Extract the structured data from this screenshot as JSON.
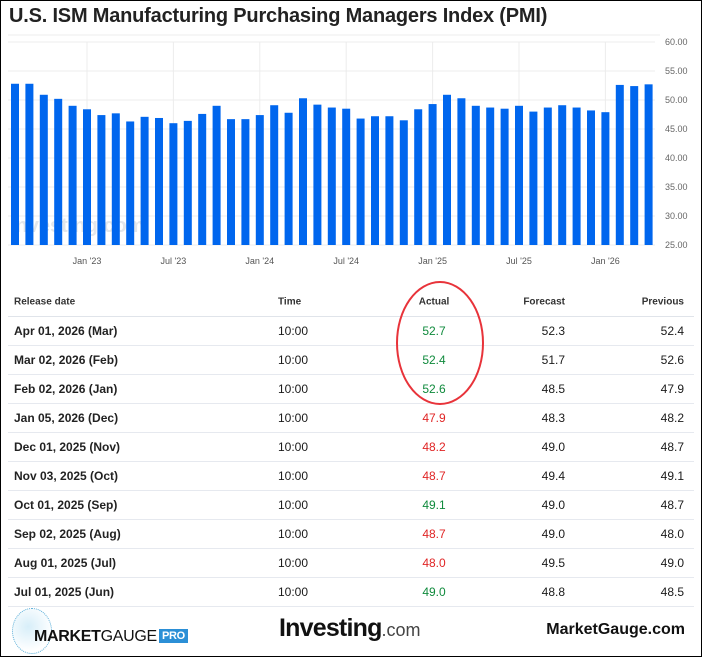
{
  "title": "U.S. ISM Manufacturing Purchasing Managers Index (PMI)",
  "chart_data": {
    "type": "bar",
    "title": "U.S. ISM Manufacturing Purchasing Managers Index (PMI)",
    "xlabel": "",
    "ylabel": "",
    "ylim": [
      25,
      60
    ],
    "yticks": [
      "60.00",
      "55.00",
      "50.00",
      "45.00",
      "40.00",
      "35.00",
      "30.00",
      "25.00"
    ],
    "ytick_values": [
      60,
      55,
      50,
      45,
      40,
      35,
      30,
      25
    ],
    "xticks": [
      {
        "label": "Jan '23",
        "index": 5
      },
      {
        "label": "Jul '23",
        "index": 11
      },
      {
        "label": "Jan '24",
        "index": 17
      },
      {
        "label": "Jul '24",
        "index": 23
      },
      {
        "label": "Jan '25",
        "index": 29
      },
      {
        "label": "Jul '25",
        "index": 35
      },
      {
        "label": "Jan '26",
        "index": 41
      }
    ],
    "categories": [
      "Aug '22",
      "Sep '22",
      "Oct '22",
      "Nov '22",
      "Dec '22",
      "Jan '23",
      "Feb '23",
      "Mar '23",
      "Apr '23",
      "May '23",
      "Jun '23",
      "Jul '23",
      "Aug '23",
      "Sep '23",
      "Oct '23",
      "Nov '23",
      "Dec '23",
      "Jan '24",
      "Feb '24",
      "Mar '24",
      "Apr '24",
      "May '24",
      "Jun '24",
      "Jul '24",
      "Aug '24",
      "Sep '24",
      "Oct '24",
      "Nov '24",
      "Dec '24",
      "Jan '25",
      "Feb '25",
      "Mar '25",
      "Apr '25",
      "May '25",
      "Jun '25",
      "Jul '25",
      "Aug '25",
      "Sep '25",
      "Oct '25",
      "Nov '25",
      "Dec '25",
      "Jan '26",
      "Feb '26",
      "Mar '26",
      "Apr '26"
    ],
    "values": [
      52.8,
      52.8,
      50.9,
      50.2,
      49.0,
      48.4,
      47.4,
      47.7,
      46.3,
      47.1,
      46.9,
      46.0,
      46.4,
      47.6,
      49.0,
      46.7,
      46.7,
      47.4,
      49.1,
      47.8,
      50.3,
      49.2,
      48.7,
      48.5,
      46.8,
      47.2,
      47.2,
      46.5,
      48.4,
      49.3,
      50.9,
      50.3,
      49.0,
      48.7,
      48.5,
      49.0,
      48.0,
      48.7,
      49.1,
      48.7,
      48.2,
      47.9,
      52.6,
      52.4,
      52.7
    ],
    "bar_color": "#0066ee",
    "grid": true,
    "watermark": "Investing.com"
  },
  "table": {
    "headers": {
      "date": "Release date",
      "time": "Time",
      "actual": "Actual",
      "forecast": "Forecast",
      "previous": "Previous"
    },
    "rows": [
      {
        "date": "Apr 01, 2026 (Mar)",
        "time": "10:00",
        "actual": "52.7",
        "dir": "up",
        "forecast": "52.3",
        "previous": "52.4"
      },
      {
        "date": "Mar 02, 2026 (Feb)",
        "time": "10:00",
        "actual": "52.4",
        "dir": "up",
        "forecast": "51.7",
        "previous": "52.6"
      },
      {
        "date": "Feb 02, 2026 (Jan)",
        "time": "10:00",
        "actual": "52.6",
        "dir": "up",
        "forecast": "48.5",
        "previous": "47.9"
      },
      {
        "date": "Jan 05, 2026 (Dec)",
        "time": "10:00",
        "actual": "47.9",
        "dir": "down",
        "forecast": "48.3",
        "previous": "48.2"
      },
      {
        "date": "Dec 01, 2025 (Nov)",
        "time": "10:00",
        "actual": "48.2",
        "dir": "down",
        "forecast": "49.0",
        "previous": "48.7"
      },
      {
        "date": "Nov 03, 2025 (Oct)",
        "time": "10:00",
        "actual": "48.7",
        "dir": "down",
        "forecast": "49.4",
        "previous": "49.1"
      },
      {
        "date": "Oct 01, 2025 (Sep)",
        "time": "10:00",
        "actual": "49.1",
        "dir": "up",
        "forecast": "49.0",
        "previous": "48.7"
      },
      {
        "date": "Sep 02, 2025 (Aug)",
        "time": "10:00",
        "actual": "48.7",
        "dir": "down",
        "forecast": "49.0",
        "previous": "48.0"
      },
      {
        "date": "Aug 01, 2025 (Jul)",
        "time": "10:00",
        "actual": "48.0",
        "dir": "down",
        "forecast": "49.5",
        "previous": "49.0"
      },
      {
        "date": "Jul 01, 2025 (Jun)",
        "time": "10:00",
        "actual": "49.0",
        "dir": "up",
        "forecast": "48.8",
        "previous": "48.5"
      }
    ]
  },
  "footer": {
    "mg_logo_bold": "MARKET",
    "mg_logo_thin": "GAUGE",
    "mg_logo_badge": "PRO",
    "investing_logo": "Investing",
    "investing_dotcom": ".com",
    "site": "MarketGauge.com"
  },
  "colors": {
    "up": "#0f8a3c",
    "down": "#e02424",
    "highlight": "#e8333a"
  }
}
